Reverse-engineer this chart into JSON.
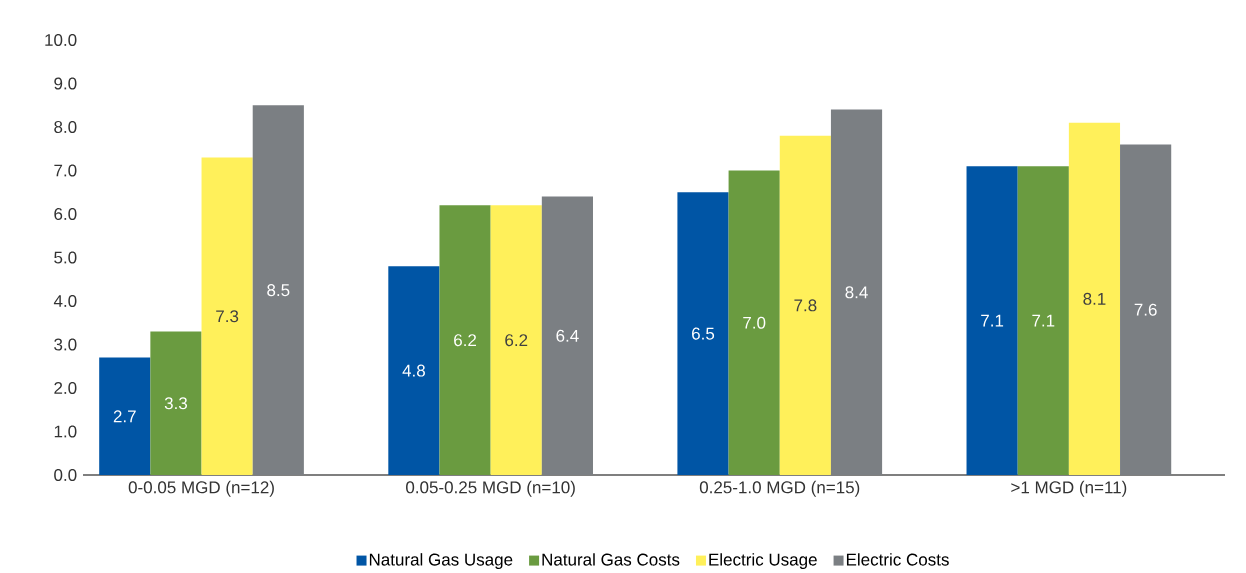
{
  "chart_data": {
    "type": "bar",
    "categories": [
      "0-0.05 MGD (n=12)",
      "0.05-0.25 MGD (n=10)",
      "0.25-1.0 MGD (n=15)",
      ">1 MGD (n=11)"
    ],
    "series": [
      {
        "name": "Natural Gas Usage",
        "color": "#0055a5",
        "values": [
          2.7,
          4.8,
          6.5,
          7.1
        ],
        "value_labels": [
          "2.7",
          "4.8",
          "6.5",
          "7.1"
        ]
      },
      {
        "name": "Natural Gas Costs",
        "color": "#6a9b40",
        "values": [
          3.3,
          6.2,
          7.0,
          7.1
        ],
        "value_labels": [
          "3.3",
          "6.2",
          "7.0",
          "7.1"
        ]
      },
      {
        "name": "Electric Usage",
        "color": "#fff05a",
        "values": [
          7.3,
          6.2,
          7.8,
          8.1
        ],
        "value_labels": [
          "7.3",
          "6.2",
          "7.8",
          "8.1"
        ]
      },
      {
        "name": "Electric Costs",
        "color": "#7b7f83",
        "values": [
          8.5,
          6.4,
          8.4,
          7.6
        ],
        "value_labels": [
          "8.5",
          "6.4",
          "8.4",
          "7.6"
        ]
      }
    ],
    "ylim": [
      0,
      10
    ],
    "yticks": [
      {
        "value": 0,
        "label": "0.0"
      },
      {
        "value": 1,
        "label": "1.0"
      },
      {
        "value": 2,
        "label": "2.0"
      },
      {
        "value": 3,
        "label": "3.0"
      },
      {
        "value": 4,
        "label": "4.0"
      },
      {
        "value": 5,
        "label": "5.0"
      },
      {
        "value": 6,
        "label": "6.0"
      },
      {
        "value": 7,
        "label": "7.0"
      },
      {
        "value": 8,
        "label": "8.0"
      },
      {
        "value": 9,
        "label": "9.0"
      },
      {
        "value": 10,
        "label": "10.0"
      }
    ],
    "grid": false,
    "legend": "bottom"
  }
}
